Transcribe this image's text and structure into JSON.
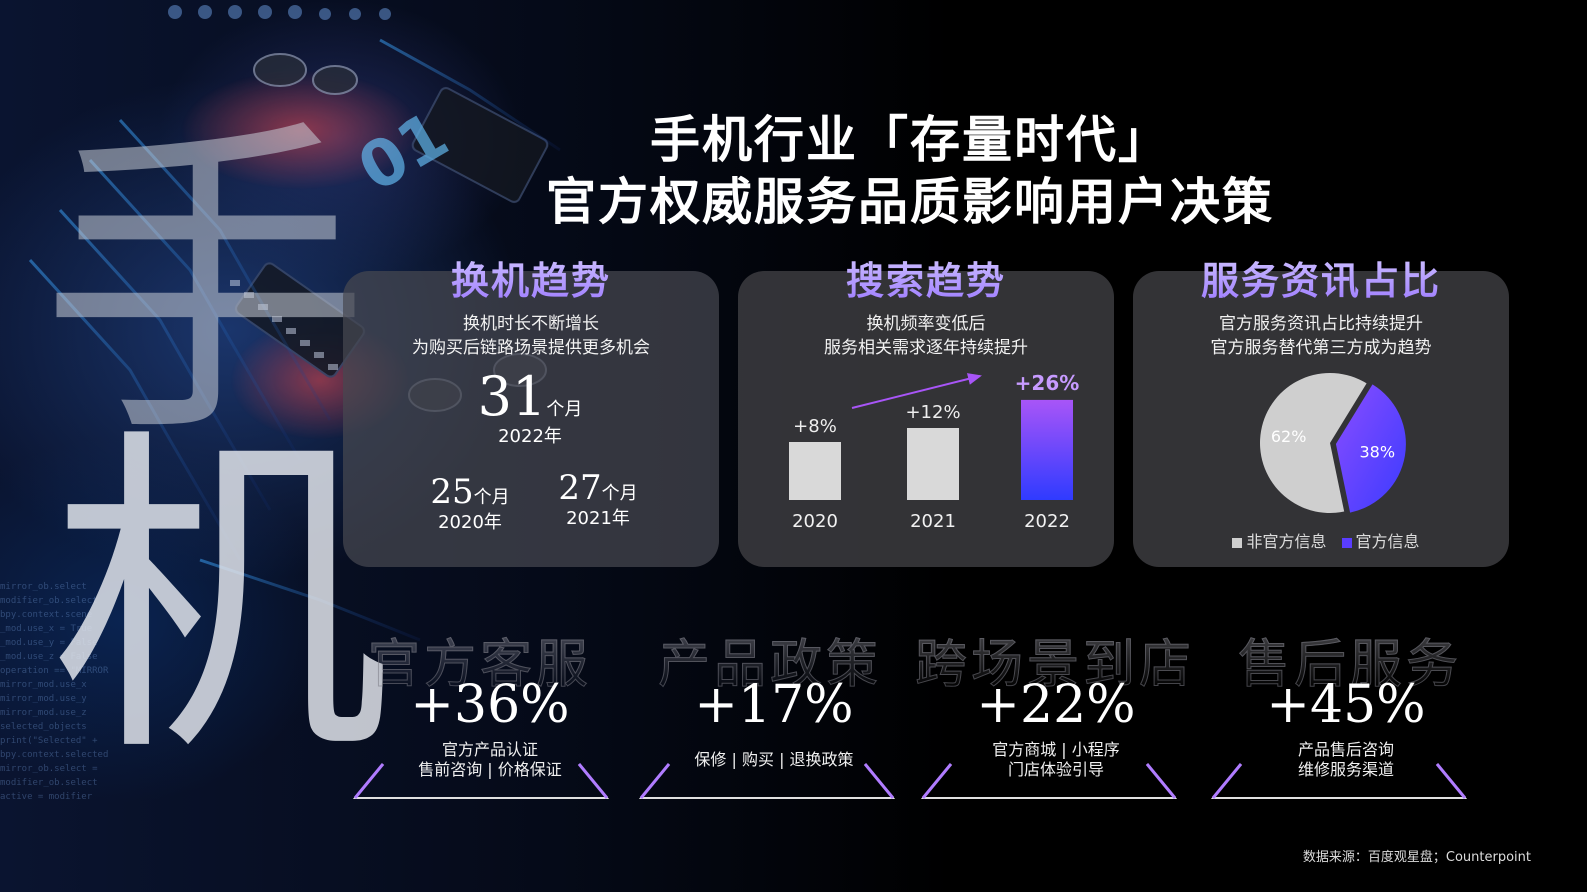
{
  "headline": {
    "line1": "手机行业「存量时代」",
    "line2": "官方权威服务品质影响用户决策"
  },
  "background": {
    "big_char_1": "手",
    "big_char_2": "机"
  },
  "cards": {
    "switch": {
      "title": "换机趋势",
      "subtitle_line1": "换机时长不断增长",
      "subtitle_line2": "为购买后链路场景提供更多机会",
      "stat_main": {
        "value": "31",
        "unit": "个月",
        "year": "2022年"
      },
      "stat_a": {
        "value": "25",
        "unit": "个月",
        "year": "2020年"
      },
      "stat_b": {
        "value": "27",
        "unit": "个月",
        "year": "2021年"
      }
    },
    "search": {
      "title": "搜索趋势",
      "subtitle_line1": "换机频率变低后",
      "subtitle_line2": "服务相关需求逐年持续提升"
    },
    "service": {
      "title": "服务资讯占比",
      "subtitle_line1": "官方服务资讯占比持续提升",
      "subtitle_line2": "官方服务替代第三方成为趋势",
      "legend_nonofficial": "非官方信息",
      "legend_official": "官方信息"
    }
  },
  "chart_data": [
    {
      "type": "bar",
      "categories": [
        "2020",
        "2021",
        "2022"
      ],
      "values": [
        8,
        12,
        26
      ],
      "data_labels": [
        "+8%",
        "+12%",
        "+26%"
      ],
      "colors": [
        "#d9d9d9",
        "#d9d9d9",
        "#7b3dff"
      ],
      "highlight_gradient": [
        "#a855f7",
        "#2f3bff"
      ],
      "arrow_color": "#a855f7"
    },
    {
      "type": "pie",
      "slices": [
        {
          "label": "官方信息",
          "value": 38,
          "text": "38%",
          "color": "#7b3dff"
        },
        {
          "label": "非官方信息",
          "value": 62,
          "text": "62%",
          "color": "#cfcfcf"
        }
      ]
    }
  ],
  "metrics": [
    {
      "category": "官方客服",
      "value": "+36%",
      "desc_line1": "官方产品认证",
      "desc_line2": "售前咨询 | 价格保证"
    },
    {
      "category": "产品政策",
      "value": "+17%",
      "desc_line1": "保修 | 购买 | 退换政策",
      "desc_line2": ""
    },
    {
      "category": "跨场景到店",
      "value": "+22%",
      "desc_line1": "官方商城 | 小程序",
      "desc_line2": "门店体验引导"
    },
    {
      "category": "售后服务",
      "value": "+45%",
      "desc_line1": "产品售后咨询",
      "desc_line2": "维修服务渠道"
    }
  ],
  "source": "数据来源：百度观星盘；Counterpoint",
  "colors": {
    "accent_purple": "#7b3dff",
    "accent_blue": "#2f3bff",
    "title_lavender": "#b9a3ff",
    "card_bg": "#3e3e42"
  }
}
